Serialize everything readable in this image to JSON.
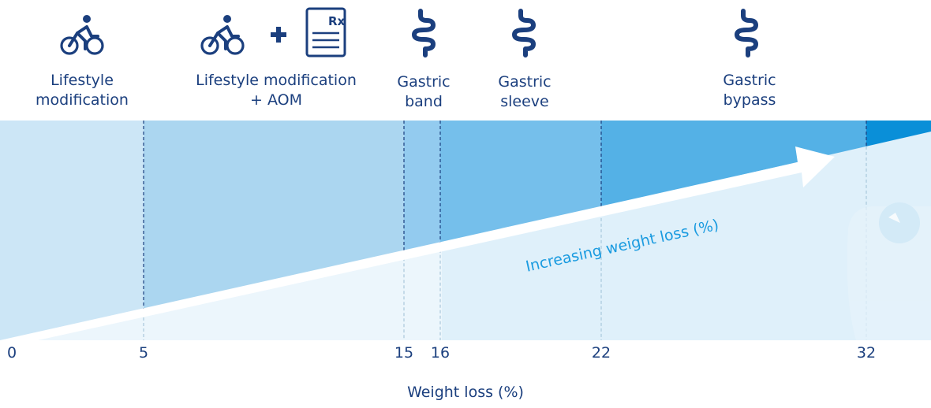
{
  "treatments": [
    {
      "id": "lifestyle",
      "line1": "Lifestyle",
      "line2": "modification",
      "icon": "bicycle-icon"
    },
    {
      "id": "lifestyle-aom",
      "line1": "Lifestyle modification",
      "line2": "+ AOM",
      "icon": "bicycle-plus-prescription-icon"
    },
    {
      "id": "band",
      "line1": "Gastric",
      "line2": "band",
      "icon": "intestine-icon"
    },
    {
      "id": "sleeve",
      "line1": "Gastric",
      "line2": "sleeve",
      "icon": "intestine-icon"
    },
    {
      "id": "bypass",
      "line1": "Gastric",
      "line2": "bypass",
      "icon": "intestine-icon"
    }
  ],
  "prescription_text": "Rx",
  "arrow_text": "Increasing weight loss (%)",
  "chart_data": {
    "type": "area",
    "ticks": [
      0,
      5,
      15,
      16,
      22,
      32
    ],
    "xlabel": "Weight loss (%)",
    "band_colors": [
      "#cce6f6",
      "#abd6f0",
      "#93cbef",
      "#75bfeb",
      "#54b1e6",
      "#0a8fd8"
    ]
  },
  "colors": {
    "icon": "#1b3f7e",
    "arrow_text": "#1a9be0"
  }
}
